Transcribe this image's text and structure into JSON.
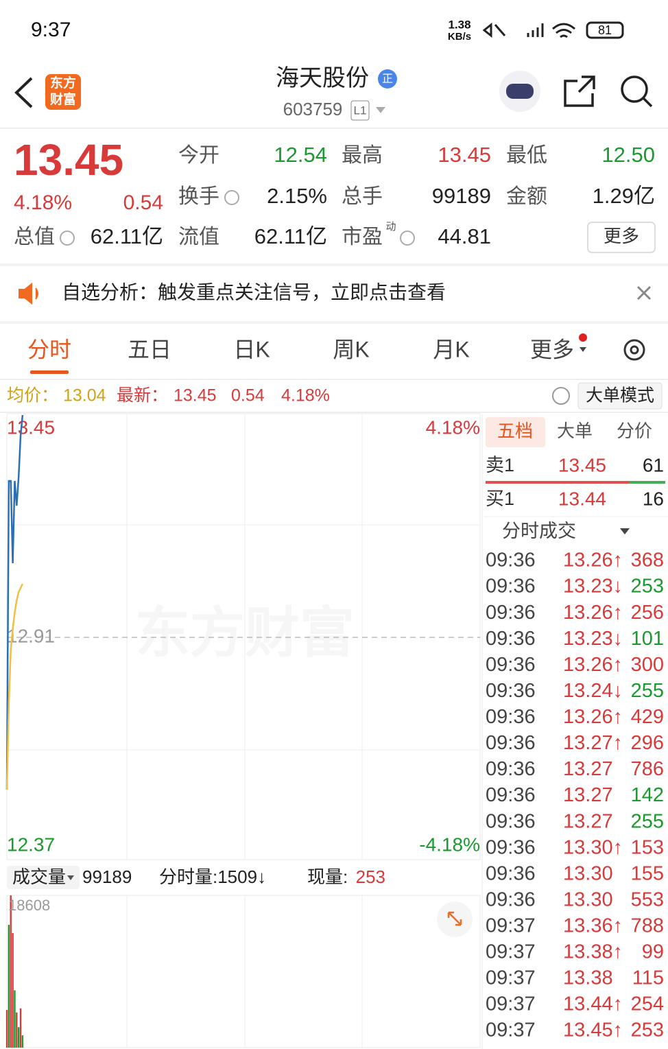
{
  "status_bar": {
    "time": "9:37",
    "net_speed": "1.38",
    "net_unit": "KB/s",
    "battery": "81"
  },
  "header": {
    "logo": [
      "东方",
      "财富"
    ],
    "title": "海天股份",
    "badge": "正",
    "code": "603759",
    "level": "L1"
  },
  "quote": {
    "price": "13.45",
    "change_pct": "4.18%",
    "change": "0.54",
    "more": "更多",
    "stats": [
      {
        "label": "今开",
        "value": "12.54",
        "color": "#1a9a2e"
      },
      {
        "label": "最高",
        "value": "13.45",
        "color": "#d83a3a"
      },
      {
        "label": "最低",
        "value": "12.50",
        "color": "#1a9a2e"
      },
      {
        "label": "换手",
        "value": "2.15%",
        "color": "#222222",
        "info": true
      },
      {
        "label": "总手",
        "value": "99189",
        "color": "#222222"
      },
      {
        "label": "金额",
        "value": "1.29亿",
        "color": "#222222"
      },
      {
        "label": "总值",
        "value": "62.11亿",
        "color": "#222222",
        "info": true
      },
      {
        "label": "流值",
        "value": "62.11亿",
        "color": "#222222"
      },
      {
        "label": "市盈",
        "value": "44.81",
        "color": "#222222",
        "info": true,
        "note": "动"
      }
    ]
  },
  "notice": {
    "text": "自选分析：触发重点关注信号，立即点击查看"
  },
  "tabs": {
    "items": [
      "分时",
      "五日",
      "日K",
      "周K",
      "月K",
      "更多"
    ],
    "active": 0
  },
  "info_bar": {
    "avg_label": "均价：",
    "avg": "13.04",
    "latest_label": "最新：",
    "latest": "13.45",
    "change": "0.54",
    "change_pct": "4.18%",
    "mode": "大单模式"
  },
  "chart_data": [
    {
      "type": "line",
      "watermark": "东方财富",
      "x": [
        0,
        1,
        2,
        3,
        4,
        5,
        6,
        7,
        8
      ],
      "xlim": [
        0,
        241
      ],
      "ylim": [
        12.37,
        13.45
      ],
      "yticks": [
        13.45,
        12.91,
        12.37
      ],
      "ytick_colors": [
        "#d83a3a",
        "#999999",
        "#1a9a2e"
      ],
      "y2lim": [
        -4.18,
        4.18
      ],
      "y2ticks": [
        {
          "value": 4.18,
          "label": "4.18%"
        },
        {
          "value": -4.18,
          "label": "-4.18%"
        }
      ],
      "y2tick_colors": [
        "#d83a3a",
        "#1a9a2e"
      ],
      "series": [
        {
          "color": "#2a6fb8",
          "values": [
            12.54,
            13.29,
            13.29,
            13.09,
            13.29,
            13.23,
            13.3,
            13.4,
            13.45
          ]
        },
        {
          "color": "#f0c040",
          "values": [
            12.54,
            12.75,
            12.88,
            12.93,
            12.97,
            13.0,
            13.02,
            13.03,
            13.04
          ]
        }
      ]
    },
    {
      "type": "bar",
      "x": [
        0,
        1,
        2,
        3,
        4,
        5,
        6,
        7,
        8
      ],
      "xlim": [
        0,
        241
      ],
      "ylim": [
        0,
        18608
      ],
      "yticks": [
        18608
      ],
      "values": [
        4600,
        15000,
        18608,
        14000,
        7000,
        4300,
        2500,
        4800,
        1500
      ],
      "colors": [
        "#d83a3a",
        "#1a9a2e",
        "#d83a3a",
        "#d83a3a",
        "#1a9a2e",
        "#d83a3a",
        "#1a9a2e",
        "#d83a3a",
        "#1a9a2e"
      ]
    }
  ],
  "volume_bar": {
    "label": "成交量",
    "total": "99189",
    "minute": "分时量:1509↓",
    "current_label": "现量:",
    "current": "253"
  },
  "order_book": {
    "tabs": [
      "五档",
      "大单",
      "分价"
    ],
    "sell": {
      "label": "卖1",
      "price": "13.45",
      "volume": "61"
    },
    "buy": {
      "label": "买1",
      "price": "13.44",
      "volume": "16"
    }
  },
  "trades": {
    "title": "分时成交",
    "rows": [
      {
        "time": "09:36",
        "price": "13.26↑",
        "volume": "368",
        "color": "#d83a3a"
      },
      {
        "time": "09:36",
        "price": "13.23↓",
        "volume": "253",
        "color": "#1a9a2e"
      },
      {
        "time": "09:36",
        "price": "13.26↑",
        "volume": "256",
        "color": "#d83a3a"
      },
      {
        "time": "09:36",
        "price": "13.23↓",
        "volume": "101",
        "color": "#1a9a2e"
      },
      {
        "time": "09:36",
        "price": "13.26↑",
        "volume": "300",
        "color": "#d83a3a"
      },
      {
        "time": "09:36",
        "price": "13.24↓",
        "volume": "255",
        "color": "#1a9a2e"
      },
      {
        "time": "09:36",
        "price": "13.26↑",
        "volume": "429",
        "color": "#d83a3a"
      },
      {
        "time": "09:36",
        "price": "13.27↑",
        "volume": "296",
        "color": "#d83a3a"
      },
      {
        "time": "09:36",
        "price": "13.27",
        "volume": "786",
        "color": "#d83a3a"
      },
      {
        "time": "09:36",
        "price": "13.27",
        "volume": "142",
        "color": "#1a9a2e"
      },
      {
        "time": "09:36",
        "price": "13.27",
        "volume": "255",
        "color": "#1a9a2e"
      },
      {
        "time": "09:36",
        "price": "13.30↑",
        "volume": "153",
        "color": "#d83a3a"
      },
      {
        "time": "09:36",
        "price": "13.30",
        "volume": "155",
        "color": "#d83a3a"
      },
      {
        "time": "09:36",
        "price": "13.30",
        "volume": "553",
        "color": "#d83a3a"
      },
      {
        "time": "09:37",
        "price": "13.36↑",
        "volume": "788",
        "color": "#d83a3a"
      },
      {
        "time": "09:37",
        "price": "13.38↑",
        "volume": "99",
        "color": "#d83a3a"
      },
      {
        "time": "09:37",
        "price": "13.38",
        "volume": "115",
        "color": "#d83a3a"
      },
      {
        "time": "09:37",
        "price": "13.44↑",
        "volume": "254",
        "color": "#d83a3a"
      },
      {
        "time": "09:37",
        "price": "13.45↑",
        "volume": "253",
        "color": "#d83a3a"
      }
    ]
  }
}
